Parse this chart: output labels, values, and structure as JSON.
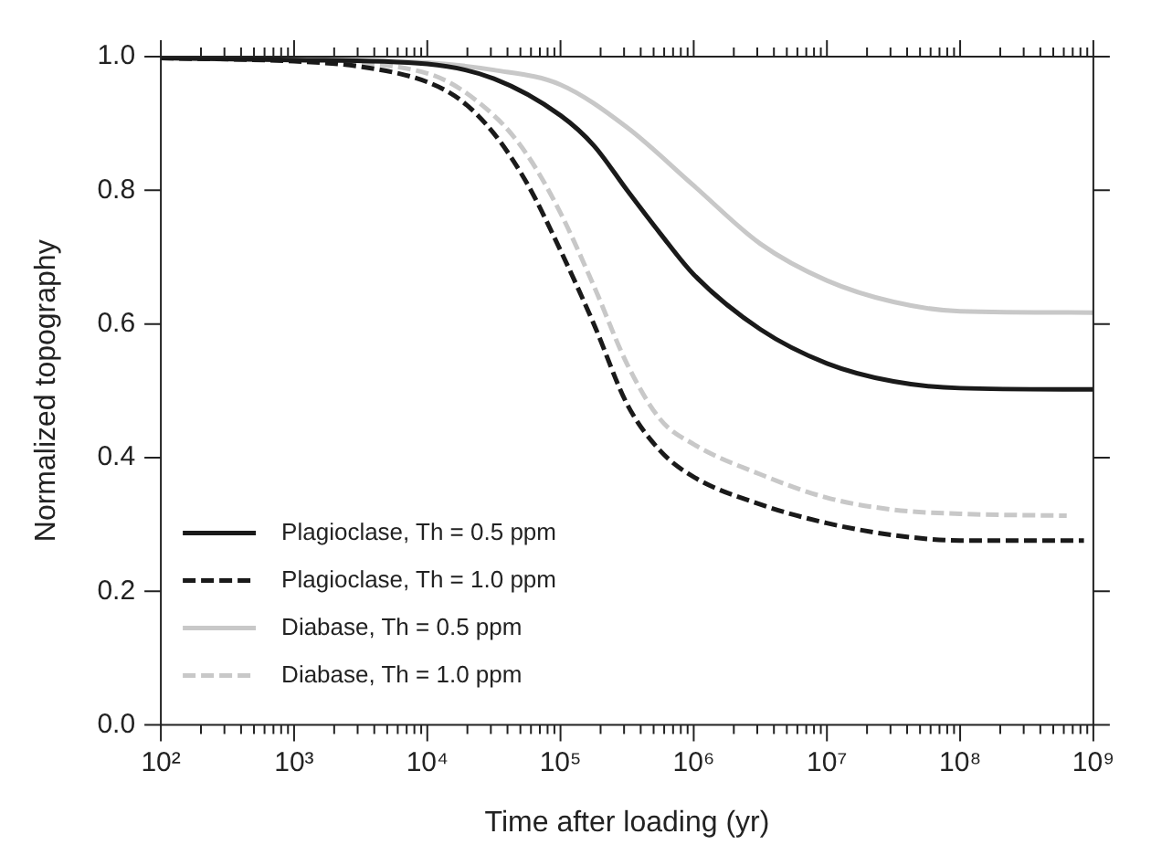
{
  "chart_data": {
    "type": "line",
    "xlabel": "Time after loading (yr)",
    "ylabel": "Normalized topography",
    "log": "x",
    "grid": false,
    "legend": "bottom left",
    "marker": "none",
    "xlim": [
      100,
      1000000000
    ],
    "ylim": [
      0,
      1
    ],
    "xticks": [
      {
        "value": 100,
        "label": "10²"
      },
      {
        "value": 200,
        "label": null
      },
      {
        "value": 300,
        "label": null
      },
      {
        "value": 400,
        "label": null
      },
      {
        "value": 500,
        "label": null
      },
      {
        "value": 600,
        "label": null
      },
      {
        "value": 700,
        "label": null
      },
      {
        "value": 800,
        "label": null
      },
      {
        "value": 900,
        "label": null
      },
      {
        "value": 1000,
        "label": "10³"
      },
      {
        "value": 2000,
        "label": null
      },
      {
        "value": 3000,
        "label": null
      },
      {
        "value": 4000,
        "label": null
      },
      {
        "value": 5000,
        "label": null
      },
      {
        "value": 6000,
        "label": null
      },
      {
        "value": 7000,
        "label": null
      },
      {
        "value": 8000,
        "label": null
      },
      {
        "value": 9000,
        "label": null
      },
      {
        "value": 10000,
        "label": "10⁴"
      },
      {
        "value": 20000,
        "label": null
      },
      {
        "value": 30000,
        "label": null
      },
      {
        "value": 40000,
        "label": null
      },
      {
        "value": 50000,
        "label": null
      },
      {
        "value": 60000,
        "label": null
      },
      {
        "value": 70000,
        "label": null
      },
      {
        "value": 80000,
        "label": null
      },
      {
        "value": 90000,
        "label": null
      },
      {
        "value": 100000,
        "label": "10⁵"
      },
      {
        "value": 200000,
        "label": null
      },
      {
        "value": 300000,
        "label": null
      },
      {
        "value": 400000,
        "label": null
      },
      {
        "value": 500000,
        "label": null
      },
      {
        "value": 600000,
        "label": null
      },
      {
        "value": 700000,
        "label": null
      },
      {
        "value": 800000,
        "label": null
      },
      {
        "value": 900000,
        "label": null
      },
      {
        "value": 1000000,
        "label": "10⁶"
      },
      {
        "value": 2000000,
        "label": null
      },
      {
        "value": 3000000,
        "label": null
      },
      {
        "value": 4000000,
        "label": null
      },
      {
        "value": 5000000,
        "label": null
      },
      {
        "value": 6000000,
        "label": null
      },
      {
        "value": 7000000,
        "label": null
      },
      {
        "value": 8000000,
        "label": null
      },
      {
        "value": 9000000,
        "label": null
      },
      {
        "value": 10000000,
        "label": "10⁷"
      },
      {
        "value": 20000000,
        "label": null
      },
      {
        "value": 30000000,
        "label": null
      },
      {
        "value": 40000000,
        "label": null
      },
      {
        "value": 50000000,
        "label": null
      },
      {
        "value": 60000000,
        "label": null
      },
      {
        "value": 70000000,
        "label": null
      },
      {
        "value": 80000000,
        "label": null
      },
      {
        "value": 90000000,
        "label": null
      },
      {
        "value": 100000000,
        "label": "10⁸"
      },
      {
        "value": 200000000,
        "label": null
      },
      {
        "value": 300000000,
        "label": null
      },
      {
        "value": 400000000,
        "label": null
      },
      {
        "value": 500000000,
        "label": null
      },
      {
        "value": 600000000,
        "label": null
      },
      {
        "value": 700000000,
        "label": null
      },
      {
        "value": 800000000,
        "label": null
      },
      {
        "value": 900000000,
        "label": null
      },
      {
        "value": 1000000000,
        "label": "10⁹"
      }
    ],
    "yticks": [
      {
        "value": 0,
        "label": "0.0"
      },
      {
        "value": 0.2,
        "label": "0.2"
      },
      {
        "value": 0.4,
        "label": "0.4"
      },
      {
        "value": 0.6,
        "label": "0.6"
      },
      {
        "value": 0.8,
        "label": "0.8"
      },
      {
        "value": 1,
        "label": "1.0"
      }
    ],
    "series": [
      {
        "name": "Plagioclase, Th = 0.5 ppm",
        "color": "#1a1a1a",
        "line_style": "solid",
        "x": [
          100,
          1000,
          10000,
          31623,
          100000,
          177828,
          316228,
          562341,
          1000000,
          3162278,
          10000000,
          31622777,
          100000000,
          1000000000
        ],
        "values": [
          0.998,
          0.995,
          0.989,
          0.967,
          0.912,
          0.867,
          0.8,
          0.735,
          0.674,
          0.592,
          0.541,
          0.514,
          0.504,
          0.502
        ]
      },
      {
        "name": "Plagioclase, Th = 1.0 ppm",
        "color": "#1a1a1a",
        "line_style": "dashed",
        "x": [
          100,
          1000,
          3162,
          10000,
          17783,
          31623,
          56234,
          100000,
          177828,
          316228,
          562341,
          1000000,
          3162278,
          10000000,
          31622777,
          100000000,
          850000000
        ],
        "values": [
          0.998,
          0.993,
          0.985,
          0.962,
          0.935,
          0.885,
          0.81,
          0.71,
          0.6,
          0.48,
          0.41,
          0.371,
          0.33,
          0.302,
          0.284,
          0.276,
          0.276
        ]
      },
      {
        "name": "Diabase, Th = 0.5 ppm",
        "color": "#c8c8c8",
        "line_style": "solid",
        "x": [
          100,
          1000,
          10000,
          31623,
          100000,
          316228,
          1000000,
          3162278,
          10000000,
          31622777,
          100000000,
          1000000000
        ],
        "values": [
          0.998,
          0.996,
          0.991,
          0.98,
          0.958,
          0.894,
          0.807,
          0.72,
          0.665,
          0.633,
          0.619,
          0.617
        ]
      },
      {
        "name": "Diabase, Th = 1.0 ppm",
        "color": "#c8c8c8",
        "line_style": "dashed",
        "x": [
          100,
          1000,
          10000,
          31623,
          56234,
          100000,
          177828,
          316228,
          562341,
          1000000,
          3162278,
          10000000,
          31622777,
          100000000,
          630957344
        ],
        "values": [
          0.998,
          0.994,
          0.975,
          0.912,
          0.853,
          0.766,
          0.657,
          0.54,
          0.457,
          0.42,
          0.375,
          0.34,
          0.322,
          0.316,
          0.313
        ]
      }
    ]
  }
}
